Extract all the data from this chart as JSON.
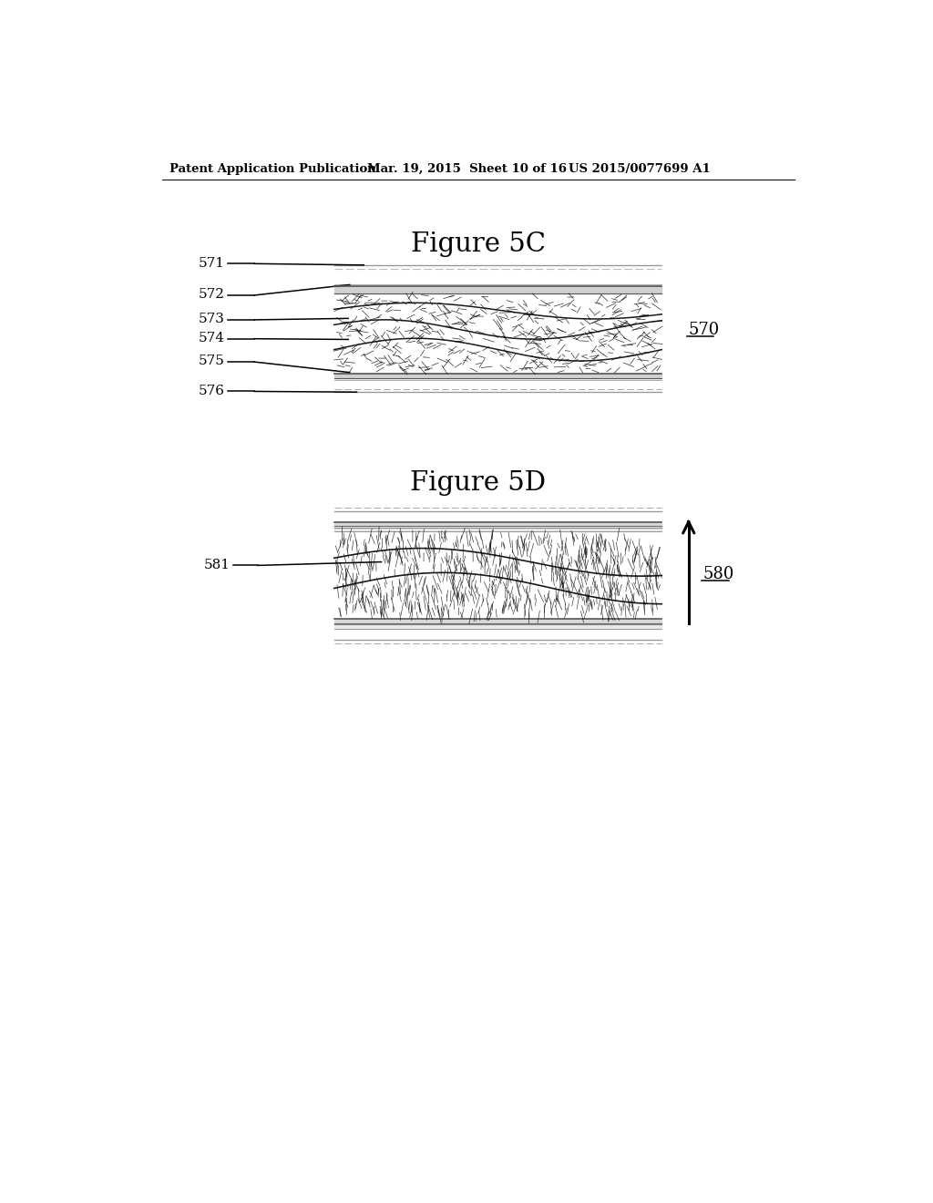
{
  "bg_color": "#ffffff",
  "header_text": "Patent Application Publication",
  "header_date": "Mar. 19, 2015  Sheet 10 of 16",
  "header_patent": "US 2015/0077699 A1",
  "fig5c_title": "Figure 5C",
  "fig5d_title": "Figure 5D",
  "fig5c_label": "570",
  "fig5d_label": "580",
  "fig5c_refs": [
    "571",
    "572",
    "573",
    "574",
    "575",
    "576"
  ],
  "fig5d_refs": [
    "581"
  ]
}
